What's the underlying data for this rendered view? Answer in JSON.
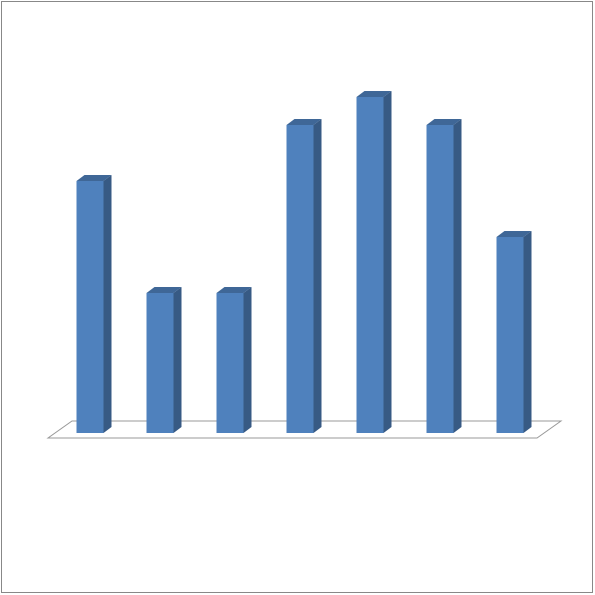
{
  "chart_data": {
    "type": "bar3d",
    "categories": [
      null,
      null,
      null,
      null,
      null,
      null,
      null
    ],
    "values": [
      9,
      5,
      5,
      11,
      12,
      11,
      7
    ],
    "color": "#4f81bd",
    "ylim": [
      0,
      12
    ]
  }
}
